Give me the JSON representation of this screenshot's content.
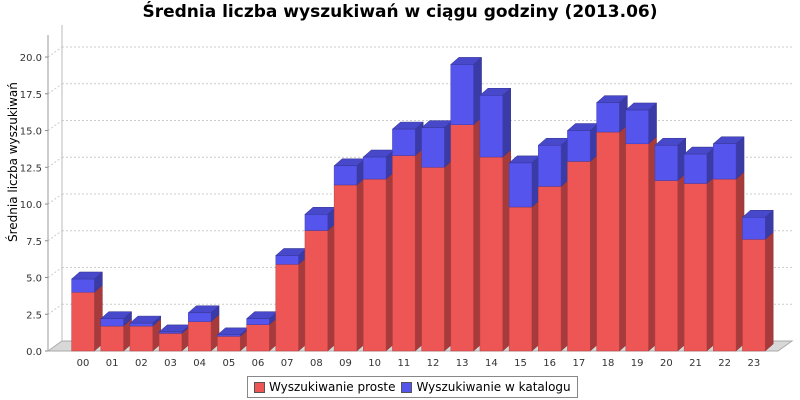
{
  "chart_data": {
    "type": "bar",
    "stacked": true,
    "style": "3d",
    "title": "Średnia liczba wyszukiwań w ciągu godziny (2013.06)",
    "xlabel": "",
    "ylabel": "Średnia liczba wyszukiwań",
    "ylim": [
      0,
      21.5
    ],
    "yticks": [
      "0.0",
      "2.5",
      "5.0",
      "7.5",
      "10.0",
      "12.5",
      "15.0",
      "17.5",
      "20.0"
    ],
    "grid": true,
    "legend_position": "bottom",
    "categories": [
      "00",
      "01",
      "02",
      "03",
      "04",
      "05",
      "06",
      "07",
      "08",
      "09",
      "10",
      "11",
      "12",
      "13",
      "14",
      "15",
      "16",
      "17",
      "18",
      "19",
      "20",
      "21",
      "22",
      "23"
    ],
    "series": [
      {
        "name": "Wyszukiwanie proste",
        "color": "#ee5555",
        "values": [
          4.0,
          1.7,
          1.7,
          1.2,
          2.0,
          1.0,
          1.8,
          5.9,
          8.2,
          11.3,
          11.7,
          13.3,
          12.5,
          15.4,
          13.2,
          9.8,
          11.2,
          12.9,
          14.9,
          14.1,
          11.6,
          11.4,
          11.7,
          7.6
        ]
      },
      {
        "name": "Wyszukiwanie w katalogu",
        "color": "#5555ee",
        "values": [
          0.9,
          0.5,
          0.2,
          0.1,
          0.6,
          0.1,
          0.4,
          0.6,
          1.1,
          1.3,
          1.5,
          1.8,
          2.7,
          4.1,
          4.2,
          3.0,
          2.8,
          2.1,
          2.0,
          2.3,
          2.4,
          2.0,
          2.4,
          1.5
        ]
      }
    ]
  }
}
